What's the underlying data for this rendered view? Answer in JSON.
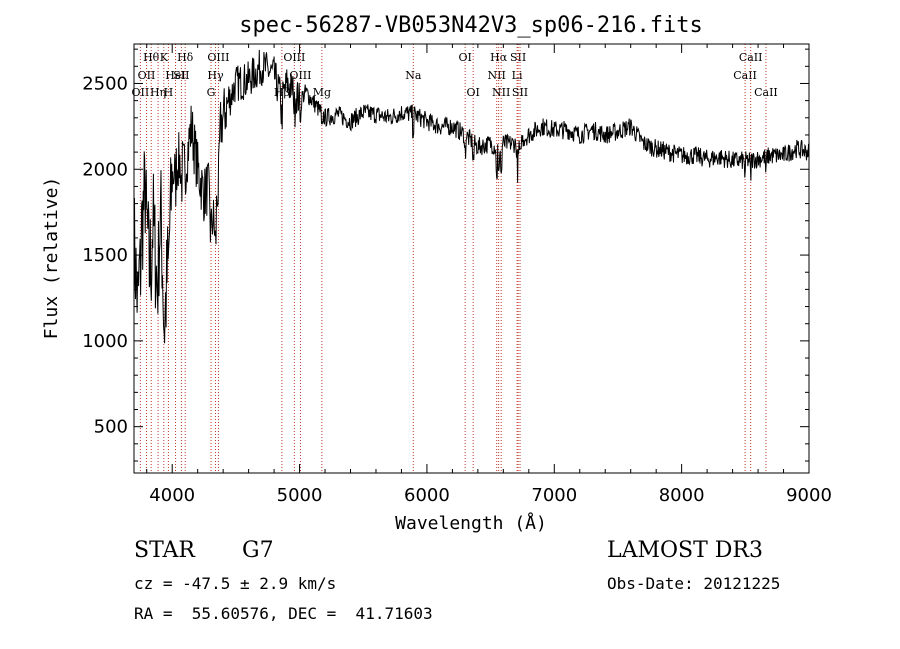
{
  "chart_data": {
    "type": "line",
    "title": "spec-56287-VB053N42V3_sp06-216.fits",
    "xlabel": "Wavelength (Å)",
    "ylabel": "Flux (relative)",
    "xlim": [
      3700,
      9000
    ],
    "ylim": [
      230,
      2730
    ],
    "xticks": [
      4000,
      5000,
      6000,
      7000,
      8000,
      9000
    ],
    "xtick_labels": [
      "4000",
      "5000",
      "6000",
      "7000",
      "8000",
      "9000"
    ],
    "yticks": [
      500,
      1000,
      1500,
      2000,
      2500
    ],
    "ytick_labels": [
      "500",
      "1000",
      "1500",
      "2000",
      "2500"
    ],
    "grid": false,
    "series": [
      {
        "name": "flux",
        "color": "#000000",
        "anchors": [
          [
            3700,
            1600
          ],
          [
            3730,
            1200
          ],
          [
            3760,
            1650
          ],
          [
            3790,
            1900
          ],
          [
            3820,
            1400
          ],
          [
            3850,
            1700
          ],
          [
            3880,
            1350
          ],
          [
            3910,
            1750
          ],
          [
            3940,
            1100
          ],
          [
            3970,
            1500
          ],
          [
            4000,
            1950
          ],
          [
            4050,
            2050
          ],
          [
            4100,
            2000
          ],
          [
            4150,
            2250
          ],
          [
            4200,
            2000
          ],
          [
            4250,
            1850
          ],
          [
            4280,
            1900
          ],
          [
            4300,
            1750
          ],
          [
            4340,
            1650
          ],
          [
            4380,
            2250
          ],
          [
            4420,
            2350
          ],
          [
            4500,
            2500
          ],
          [
            4600,
            2520
          ],
          [
            4700,
            2600
          ],
          [
            4800,
            2550
          ],
          [
            4860,
            2400
          ],
          [
            4900,
            2500
          ],
          [
            4960,
            2450
          ],
          [
            5000,
            2400
          ],
          [
            5050,
            2450
          ],
          [
            5100,
            2400
          ],
          [
            5200,
            2300
          ],
          [
            5300,
            2320
          ],
          [
            5400,
            2280
          ],
          [
            5500,
            2330
          ],
          [
            5600,
            2320
          ],
          [
            5700,
            2300
          ],
          [
            5800,
            2330
          ],
          [
            5900,
            2320
          ],
          [
            6000,
            2280
          ],
          [
            6100,
            2250
          ],
          [
            6200,
            2250
          ],
          [
            6300,
            2200
          ],
          [
            6400,
            2130
          ],
          [
            6500,
            2150
          ],
          [
            6560,
            2120
          ],
          [
            6600,
            2150
          ],
          [
            6700,
            2150
          ],
          [
            6800,
            2200
          ],
          [
            6900,
            2250
          ],
          [
            7000,
            2230
          ],
          [
            7100,
            2230
          ],
          [
            7200,
            2200
          ],
          [
            7300,
            2230
          ],
          [
            7400,
            2200
          ],
          [
            7500,
            2220
          ],
          [
            7600,
            2250
          ],
          [
            7650,
            2200
          ],
          [
            7700,
            2150
          ],
          [
            7800,
            2120
          ],
          [
            7900,
            2100
          ],
          [
            8000,
            2080
          ],
          [
            8100,
            2080
          ],
          [
            8200,
            2060
          ],
          [
            8300,
            2070
          ],
          [
            8400,
            2050
          ],
          [
            8500,
            2050
          ],
          [
            8600,
            2060
          ],
          [
            8700,
            2080
          ],
          [
            8800,
            2080
          ],
          [
            8900,
            2120
          ],
          [
            9000,
            2100
          ]
        ]
      }
    ],
    "lines": [
      {
        "wl": 3750,
        "label": "OII",
        "row": 2
      },
      {
        "wl": 3798,
        "label": "OII",
        "row": 1
      },
      {
        "wl": 3835,
        "label": "Hθ",
        "row": 0
      },
      {
        "wl": 3889,
        "label": "Hη",
        "row": 2
      },
      {
        "wl": 3934,
        "label": "K",
        "row": 0
      },
      {
        "wl": 3970,
        "label": "H",
        "row": 2
      },
      {
        "wl": 4026,
        "label": "HeI",
        "row": 1
      },
      {
        "wl": 4072,
        "label": "SII",
        "row": 1
      },
      {
        "wl": 4102,
        "label": "Hδ",
        "row": 0
      },
      {
        "wl": 4305,
        "label": "G",
        "row": 2
      },
      {
        "wl": 4340,
        "label": "Hγ",
        "row": 1
      },
      {
        "wl": 4363,
        "label": "OIII",
        "row": 0
      },
      {
        "wl": 4861,
        "label": "Hβ",
        "row": 2
      },
      {
        "wl": 4959,
        "label": "OIII",
        "row": 0
      },
      {
        "wl": 5007,
        "label": "OIII",
        "row": 1
      },
      {
        "wl": 5175,
        "label": "Mg",
        "row": 2
      },
      {
        "wl": 5893,
        "label": "Na",
        "row": 1
      },
      {
        "wl": 6300,
        "label": "OI",
        "row": 0
      },
      {
        "wl": 6363,
        "label": "OI",
        "row": 2
      },
      {
        "wl": 6548,
        "label": "NII",
        "row": 1
      },
      {
        "wl": 6563,
        "label": "Hα",
        "row": 0
      },
      {
        "wl": 6583,
        "label": "NII",
        "row": 2
      },
      {
        "wl": 6708,
        "label": "Li",
        "row": 1
      },
      {
        "wl": 6716,
        "label": "SII",
        "row": 0
      },
      {
        "wl": 6731,
        "label": "SII",
        "row": 2
      },
      {
        "wl": 8498,
        "label": "CaII",
        "row": 1
      },
      {
        "wl": 8542,
        "label": "CaII",
        "row": 0
      },
      {
        "wl": 8662,
        "label": "CaII",
        "row": 2
      }
    ]
  },
  "info": {
    "object_class": "STAR",
    "subclass": "G7",
    "survey": "LAMOST DR3",
    "cz": "cz = -47.5 ± 2.9 km/s",
    "obs_date": "Obs-Date: 20121225",
    "radec": "RA =  55.60576, DEC =  41.71603"
  }
}
